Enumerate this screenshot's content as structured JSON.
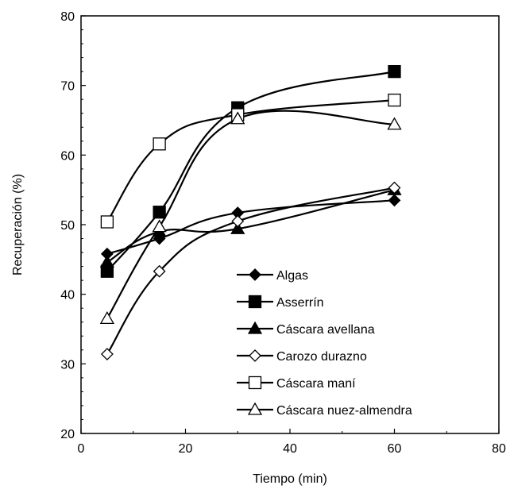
{
  "chart_data": {
    "type": "line",
    "xlabel": "Tiempo (min)",
    "ylabel": "Recuperación (%)",
    "xlim": [
      0,
      80
    ],
    "ylim": [
      20,
      80
    ],
    "xticks": [
      "0",
      "20",
      "40",
      "60",
      "80"
    ],
    "yticks": [
      "20",
      "30",
      "40",
      "50",
      "60",
      "70",
      "80"
    ],
    "grid": false,
    "legend_position": "bottom-right",
    "series": [
      {
        "name": "Algas",
        "marker": "diamond",
        "fill": "#000000",
        "points": [
          [
            5,
            45.8
          ],
          [
            15,
            48
          ],
          [
            30,
            51.7
          ],
          [
            60,
            53.5
          ]
        ]
      },
      {
        "name": "Asserrín",
        "marker": "square",
        "fill": "#000000",
        "points": [
          [
            5,
            43.3
          ],
          [
            15,
            51.8
          ],
          [
            30,
            66.8
          ],
          [
            60,
            72
          ]
        ]
      },
      {
        "name": "Cáscara avellana",
        "marker": "triangle",
        "fill": "#000000",
        "points": [
          [
            5,
            44.6
          ],
          [
            15,
            49
          ],
          [
            30,
            49.4
          ],
          [
            60,
            55
          ]
        ]
      },
      {
        "name": "Carozo durazno",
        "marker": "diamond",
        "fill": "#ffffff",
        "points": [
          [
            5,
            31.4
          ],
          [
            15,
            43.3
          ],
          [
            30,
            50.5
          ],
          [
            60,
            55.3
          ]
        ]
      },
      {
        "name": "Cáscara maní",
        "marker": "square",
        "fill": "#ffffff",
        "points": [
          [
            5,
            50.4
          ],
          [
            15,
            61.6
          ],
          [
            30,
            65.8
          ],
          [
            60,
            67.9
          ]
        ]
      },
      {
        "name": "Cáscara nuez-almendra",
        "marker": "triangle",
        "fill": "#ffffff",
        "points": [
          [
            5,
            36.5
          ],
          [
            15,
            49.7
          ],
          [
            30,
            65.2
          ],
          [
            60,
            64.4
          ]
        ]
      }
    ]
  }
}
